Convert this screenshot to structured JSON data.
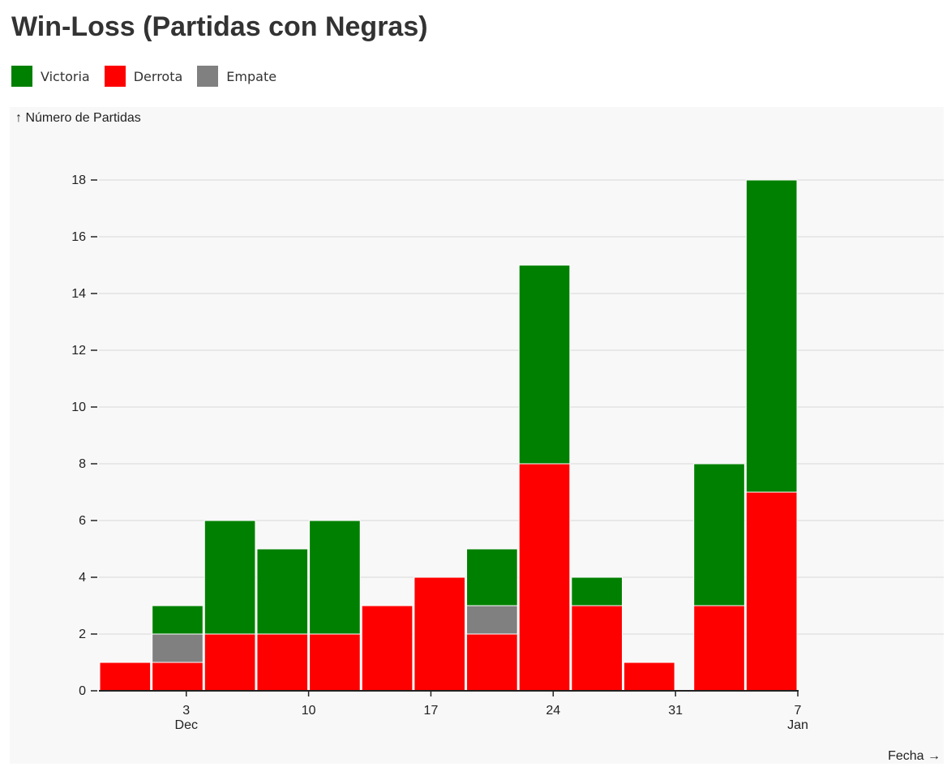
{
  "title": "Win-Loss (Partidas con Negras)",
  "legend": [
    {
      "label": "Victoria",
      "color": "#008000"
    },
    {
      "label": "Derrota",
      "color": "#ff0000"
    },
    {
      "label": "Empate",
      "color": "#808080"
    }
  ],
  "chart_data": {
    "type": "bar",
    "stacked": true,
    "title": "Win-Loss (Partidas con Negras)",
    "ylabel": "↑ Número de Partidas",
    "xlabel": "Fecha →",
    "ylim": [
      0,
      18
    ],
    "yticks": [
      0,
      2,
      4,
      6,
      8,
      10,
      12,
      14,
      16,
      18
    ],
    "grid": true,
    "legend_position": "top-left",
    "xrange": [
      "2023-11-28",
      "2024-01-07"
    ],
    "xticks": [
      {
        "date": "2023-12-03",
        "label": "3",
        "sublabel": "Dec"
      },
      {
        "date": "2023-12-10",
        "label": "10",
        "sublabel": ""
      },
      {
        "date": "2023-12-17",
        "label": "17",
        "sublabel": ""
      },
      {
        "date": "2023-12-24",
        "label": "24",
        "sublabel": ""
      },
      {
        "date": "2023-12-31",
        "label": "31",
        "sublabel": ""
      },
      {
        "date": "2024-01-07",
        "label": "7",
        "sublabel": "Jan"
      }
    ],
    "bins": [
      {
        "start": "2023-11-28",
        "end": "2023-12-01",
        "Derrota": 1,
        "Empate": 0,
        "Victoria": 0
      },
      {
        "start": "2023-12-01",
        "end": "2023-12-04",
        "Derrota": 1,
        "Empate": 1,
        "Victoria": 1
      },
      {
        "start": "2023-12-04",
        "end": "2023-12-07",
        "Derrota": 2,
        "Empate": 0,
        "Victoria": 4
      },
      {
        "start": "2023-12-07",
        "end": "2023-12-10",
        "Derrota": 2,
        "Empate": 0,
        "Victoria": 3
      },
      {
        "start": "2023-12-10",
        "end": "2023-12-13",
        "Derrota": 2,
        "Empate": 0,
        "Victoria": 4
      },
      {
        "start": "2023-12-13",
        "end": "2023-12-16",
        "Derrota": 3,
        "Empate": 0,
        "Victoria": 0
      },
      {
        "start": "2023-12-16",
        "end": "2023-12-19",
        "Derrota": 4,
        "Empate": 0,
        "Victoria": 0
      },
      {
        "start": "2023-12-19",
        "end": "2023-12-22",
        "Derrota": 2,
        "Empate": 1,
        "Victoria": 2
      },
      {
        "start": "2023-12-22",
        "end": "2023-12-25",
        "Derrota": 8,
        "Empate": 0,
        "Victoria": 7
      },
      {
        "start": "2023-12-25",
        "end": "2023-12-28",
        "Derrota": 3,
        "Empate": 0,
        "Victoria": 1
      },
      {
        "start": "2023-12-28",
        "end": "2023-12-31",
        "Derrota": 1,
        "Empate": 0,
        "Victoria": 0
      },
      {
        "start": "2024-01-01",
        "end": "2024-01-04",
        "Derrota": 3,
        "Empate": 0,
        "Victoria": 5
      },
      {
        "start": "2024-01-04",
        "end": "2024-01-07",
        "Derrota": 7,
        "Empate": 0,
        "Victoria": 11
      }
    ],
    "series": [
      {
        "name": "Derrota",
        "color": "#ff0000"
      },
      {
        "name": "Empate",
        "color": "#808080"
      },
      {
        "name": "Victoria",
        "color": "#008000"
      }
    ]
  }
}
